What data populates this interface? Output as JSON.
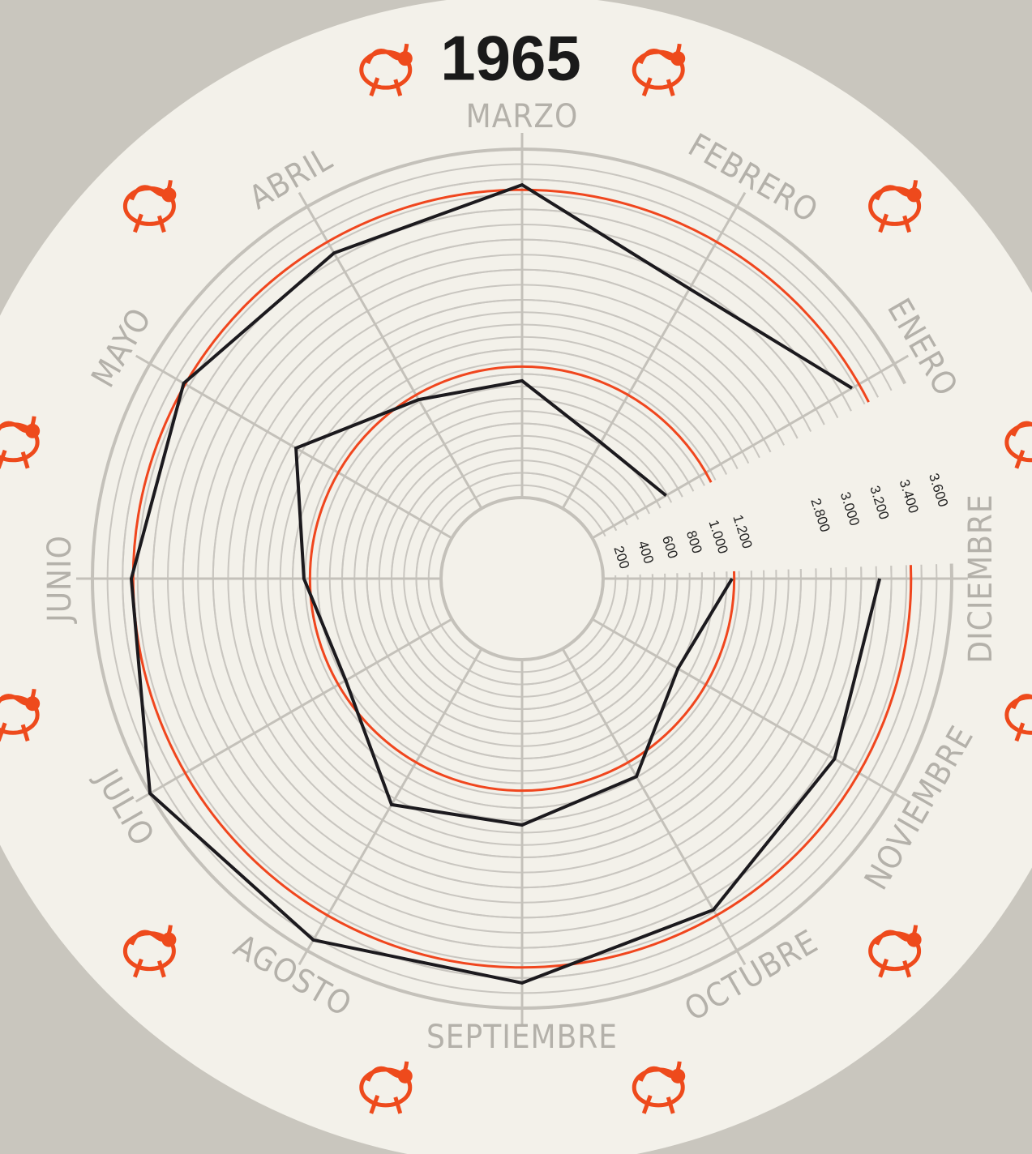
{
  "chart_data": {
    "type": "radar",
    "title": "1965",
    "categories": [
      "ENERO",
      "FEBRERO",
      "MARZO",
      "ABRIL",
      "MAYO",
      "JUNIO",
      "JULIO",
      "AGOSTO",
      "SEPTIEMBRE",
      "OCTUBRE",
      "NOVIEMBRE",
      "DICIEMBRE"
    ],
    "start_angle": 30,
    "direction": "counterclockwise",
    "rlim": [
      0,
      3600
    ],
    "rbreak": [
      1600,
      2600
    ],
    "ring_step": 100,
    "rticks": [
      200,
      400,
      600,
      800,
      {
        "value": 1000,
        "label": "1.000"
      },
      {
        "value": 1200,
        "label": "1.200"
      },
      {
        "value": 2800,
        "label": "2.800"
      },
      {
        "value": 3000,
        "label": "3.000"
      },
      {
        "value": 3200,
        "label": "3.200"
      },
      {
        "value": 3400,
        "label": "3.400"
      },
      {
        "value": 3600,
        "label": "3.600"
      }
    ],
    "series": [
      {
        "color": "#1c1a1e",
        "values": [
          3277,
          2971,
          3363,
          3245,
          3342,
          3342,
          3600,
          3519,
          3433,
          3288,
          3143,
          3122
        ]
      },
      {
        "color": "#1c1a1e",
        "values": [
          689,
          617,
          945,
          1017,
          1456,
          1109,
          991,
          1456,
          1338,
          1194,
          800,
          1043
        ]
      }
    ],
    "reference_circles": [
      {
        "value": 3330,
        "color": "#f0461e"
      },
      {
        "value": 1060,
        "color": "#f0461e"
      }
    ]
  }
}
